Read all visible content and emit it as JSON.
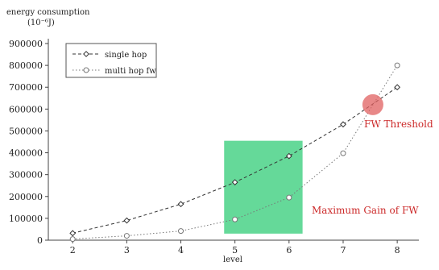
{
  "chart_data": {
    "type": "line",
    "ylabel_line1": "energy consumption",
    "ylabel_line2": "(10⁻⁶J)",
    "xlabel": "level",
    "x": [
      2,
      3,
      4,
      5,
      6,
      7,
      8
    ],
    "xlim": [
      1.55,
      8.4
    ],
    "ylim": [
      0,
      900000
    ],
    "y_ticks": [
      0,
      100000,
      200000,
      300000,
      400000,
      500000,
      600000,
      700000,
      800000,
      900000
    ],
    "y_tick_labels": [
      "0",
      "100000",
      "200000",
      "300000",
      "400000",
      "500000",
      "600000",
      "700000",
      "800000",
      "900000"
    ],
    "x_tick_labels": [
      "2",
      "3",
      "4",
      "5",
      "6",
      "7",
      "8"
    ],
    "grid": false,
    "legend_position": "top-left",
    "series": [
      {
        "name": "single hop",
        "style": "dashed-diamond",
        "color": "#333333",
        "values": [
          32000,
          90000,
          165000,
          265000,
          385000,
          530000,
          700000
        ]
      },
      {
        "name": "multi hop fw",
        "style": "dotted-circle",
        "color": "#777777",
        "values": [
          5000,
          20000,
          42000,
          95000,
          195000,
          398000,
          800000
        ]
      }
    ],
    "annotations": {
      "threshold": {
        "label": "FW Threshold",
        "x": 7.55,
        "y": 620000,
        "color": "#e06060"
      },
      "gain": {
        "label": "Maximum Gain of FW",
        "x_from": 4.8,
        "x_to": 6.25,
        "y_from": 30000,
        "y_to": 455000,
        "color": "#3fcf7f"
      }
    }
  }
}
